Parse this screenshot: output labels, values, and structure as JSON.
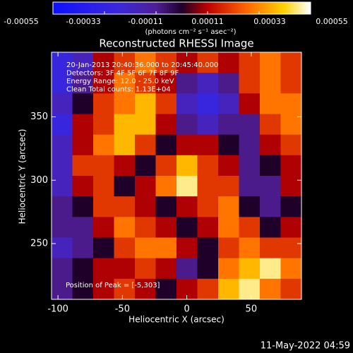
{
  "chart_data": {
    "type": "heatmap",
    "title": "Reconstructed RHESSI Image",
    "xlabel": "Heliocentric X (arcsec)",
    "ylabel": "Heliocentric Y (arcsec)",
    "xlim": [
      -105,
      89
    ],
    "ylim": [
      206,
      401
    ],
    "xticks": [
      -100,
      -50,
      0,
      50
    ],
    "yticks": [
      250,
      300,
      350
    ],
    "zlim": [
      -0.00055,
      0.00055
    ],
    "colorbar_ticks": [
      -0.00055,
      -0.00033,
      -0.00011,
      0.00011,
      0.00033,
      0.00055
    ],
    "colorbar_label": "(photons cm⁻² s⁻¹ asec⁻²)",
    "annotations": [
      "20-Jan-2013 20:40:36.000 to 20:45:40.000",
      "Detectors: 3F 4F 5F 6F 7F 8F 9F",
      "Energy Range: 12.0 - 25.0 keV",
      "Clean     Total counts: 1.13E+04"
    ],
    "peak_label": "Position of Peak = [-5,303]",
    "timestamp": "11-May-2022 04:59",
    "z": [
      [
        -0.0003,
        -0.0002,
        0.0001,
        0.0002,
        0.0003,
        0.0002,
        0.0001,
        0.0002,
        0.0001,
        0.0002,
        0.0003,
        0.0002
      ],
      [
        -0.0003,
        -0.0001,
        0.0001,
        0.0003,
        0.0002,
        0.0001,
        -0.0001,
        -0.0002,
        -0.0001,
        0.0002,
        0.0003,
        0.0002
      ],
      [
        -0.0002,
        0,
        0.0002,
        0.0003,
        0.0004,
        0.0002,
        -0.0002,
        -0.0003,
        -0.0002,
        0.0001,
        0.0003,
        0.0003
      ],
      [
        -0.0003,
        0.0001,
        0.0002,
        0.0004,
        0.0004,
        0.0001,
        -0.0001,
        -0.0002,
        -0.0001,
        -0.0001,
        0.0002,
        0.0003
      ],
      [
        -0.0002,
        0.0001,
        0.0003,
        0.0004,
        0.0002,
        0,
        0.0001,
        0.0001,
        0,
        -0.0001,
        0.0001,
        0.0002
      ],
      [
        -0.0002,
        0.0002,
        0.0002,
        0.0001,
        0,
        0.0002,
        0.0004,
        0.0002,
        0.0001,
        -0.0001,
        0,
        0.0001
      ],
      [
        -0.0002,
        0.0001,
        0.0002,
        0,
        0.0001,
        0.0003,
        0.0005,
        0.0002,
        0.0002,
        -0.0001,
        -0.0001,
        0.0001
      ],
      [
        -0.0001,
        0,
        0.0002,
        0.0002,
        0.0001,
        0,
        0.0001,
        0.0002,
        0.0003,
        0,
        -0.0001,
        0
      ],
      [
        -0.0001,
        -0.0001,
        0.0001,
        0.0003,
        0.0002,
        0.0001,
        0,
        0.0001,
        0.0003,
        0.0002,
        0,
        0.0001
      ],
      [
        -0.0002,
        -0.0001,
        0,
        0.0002,
        0.0003,
        0.0003,
        0.0001,
        0,
        0.0002,
        0.0003,
        0.0002,
        0.0002
      ],
      [
        -0.0001,
        0,
        0.0001,
        0.0001,
        0.0002,
        0.0001,
        -0.0001,
        0,
        0.0003,
        0.0004,
        0.0005,
        0.0003
      ],
      [
        -0.0001,
        0,
        0.0001,
        0.0002,
        0.0001,
        0,
        0.0001,
        0.0002,
        0.0004,
        0.0005,
        0.0003,
        0.0002
      ]
    ]
  }
}
